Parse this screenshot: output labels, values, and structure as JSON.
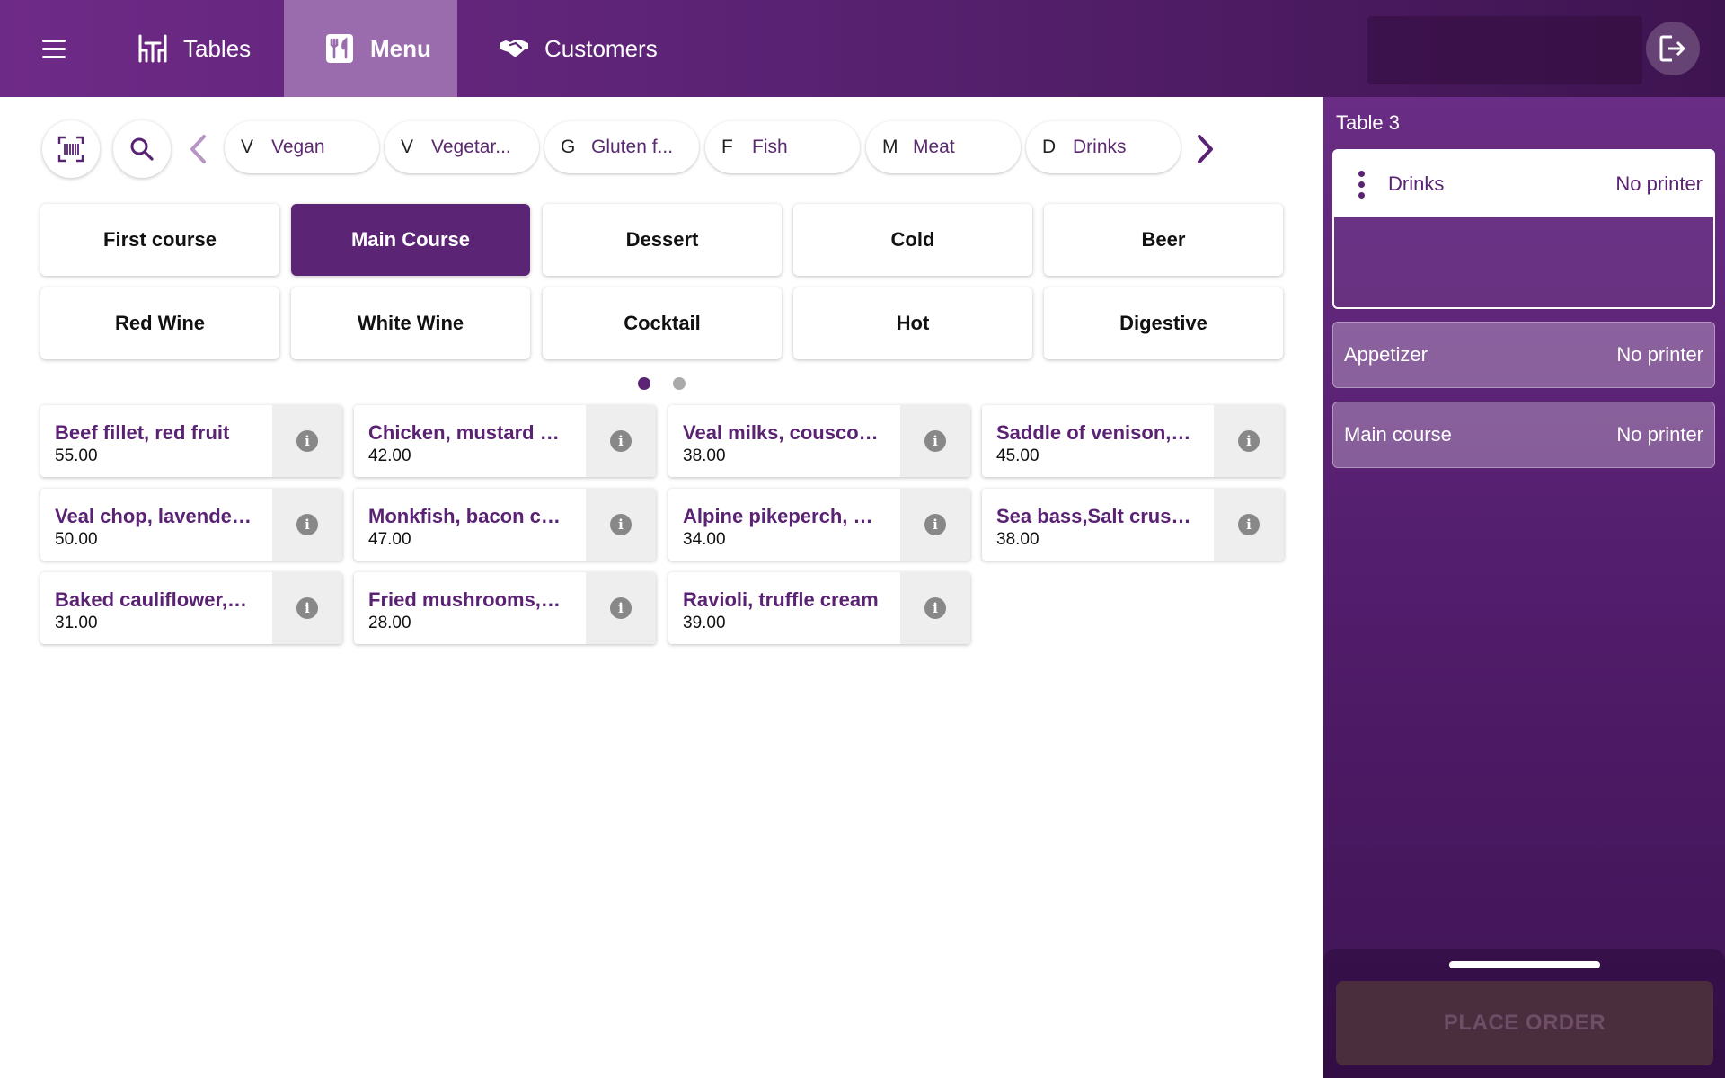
{
  "header": {
    "tabs": [
      {
        "label": "Tables",
        "icon": "table-chairs-icon"
      },
      {
        "label": "Menu",
        "icon": "menu-book-icon",
        "active": true
      },
      {
        "label": "Customers",
        "icon": "handshake-icon"
      }
    ]
  },
  "filters": {
    "chips": [
      {
        "code": "V",
        "label": "Vegan"
      },
      {
        "code": "V",
        "label": "Vegetar..."
      },
      {
        "code": "G",
        "label": "Gluten f..."
      },
      {
        "code": "F",
        "label": "Fish"
      },
      {
        "code": "M",
        "label": "Meat"
      },
      {
        "code": "D",
        "label": "Drinks"
      }
    ]
  },
  "categories": [
    {
      "label": "First course"
    },
    {
      "label": "Main Course",
      "active": true
    },
    {
      "label": "Dessert"
    },
    {
      "label": "Cold"
    },
    {
      "label": "Beer"
    },
    {
      "label": "Red Wine"
    },
    {
      "label": "White Wine"
    },
    {
      "label": "Cocktail"
    },
    {
      "label": "Hot"
    },
    {
      "label": "Digestive"
    }
  ],
  "pagination": {
    "pages": 2,
    "current": 1
  },
  "items": [
    {
      "name": "Beef fillet, red fruit",
      "price": "55.00"
    },
    {
      "name": "Chicken, mustard cr...",
      "price": "42.00"
    },
    {
      "name": "Veal milks, couscou...",
      "price": "38.00"
    },
    {
      "name": "Saddle of venison,bl...",
      "price": "45.00"
    },
    {
      "name": "Veal chop, lavender...",
      "price": "50.00"
    },
    {
      "name": "Monkfish, bacon co...",
      "price": "47.00"
    },
    {
      "name": "Alpine pikeperch, m...",
      "price": "34.00"
    },
    {
      "name": "Sea bass,Salt crust,...",
      "price": "38.00"
    },
    {
      "name": "Baked cauliflower, p...",
      "price": "31.00"
    },
    {
      "name": "Fried mushrooms,ho...",
      "price": "28.00"
    },
    {
      "name": "Ravioli, truffle cream",
      "price": "39.00"
    }
  ],
  "order": {
    "table": "Table 3",
    "courses": [
      {
        "name": "Drinks",
        "printer": "No printer",
        "selected": true
      },
      {
        "name": "Appetizer",
        "printer": "No printer"
      },
      {
        "name": "Main course",
        "printer": "No printer"
      }
    ],
    "place_order_label": "PLACE ORDER"
  },
  "colors": {
    "brand": "#5c2475",
    "active_tab": "#9a6cae",
    "place_order_bg": "#4a2e3e"
  }
}
